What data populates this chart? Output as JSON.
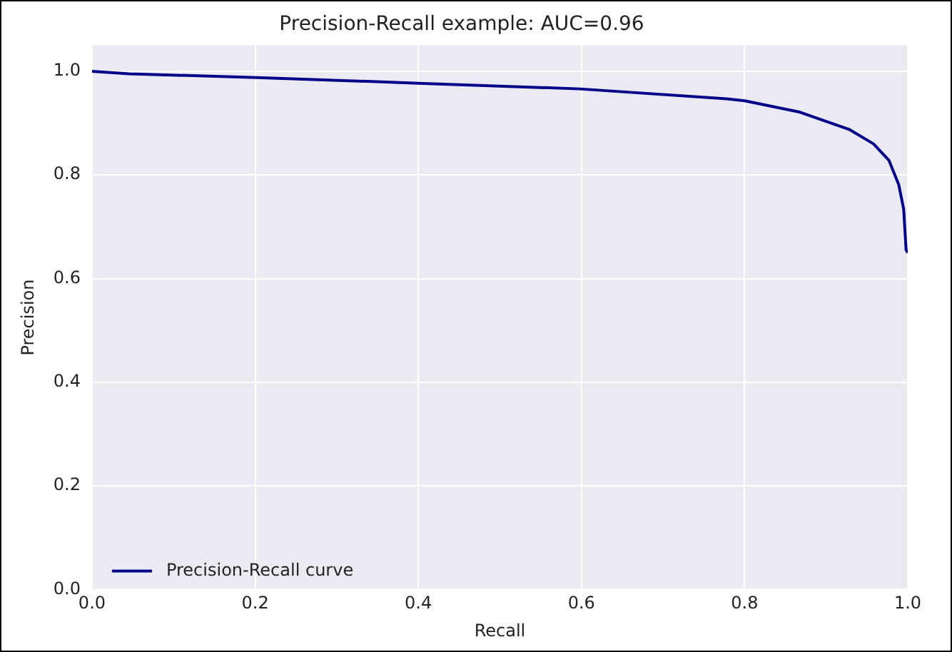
{
  "chart_data": {
    "type": "line",
    "title": "Precision-Recall example: AUC=0.96",
    "xlabel": "Recall",
    "ylabel": "Precision",
    "x": [
      0,
      0.046,
      0.202,
      0.4,
      0.598,
      0.778,
      0.8,
      0.868,
      0.928,
      0.958,
      0.977,
      0.989,
      0.995,
      0.998,
      1.0
    ],
    "series": [
      {
        "name": "Precision-Recall curve",
        "color": "#00008b",
        "values": [
          1.0,
          0.995,
          0.988,
          0.977,
          0.966,
          0.947,
          0.943,
          0.921,
          0.888,
          0.86,
          0.828,
          0.781,
          0.734,
          0.655,
          0.65
        ]
      }
    ],
    "xlim": [
      0,
      1
    ],
    "ylim": [
      0,
      1.05
    ],
    "xticks": [
      {
        "value": 0,
        "label": "0.0"
      },
      0.2,
      0.4,
      0.6,
      0.8,
      {
        "value": 1,
        "label": "1.0"
      }
    ],
    "yticks": [
      {
        "value": 0,
        "label": "0.0"
      },
      0.2,
      0.4,
      0.6,
      0.8,
      {
        "value": 1,
        "label": "1.0"
      }
    ],
    "grid": true,
    "legend": "bottom left",
    "marker": "none",
    "line_style": "solid"
  }
}
